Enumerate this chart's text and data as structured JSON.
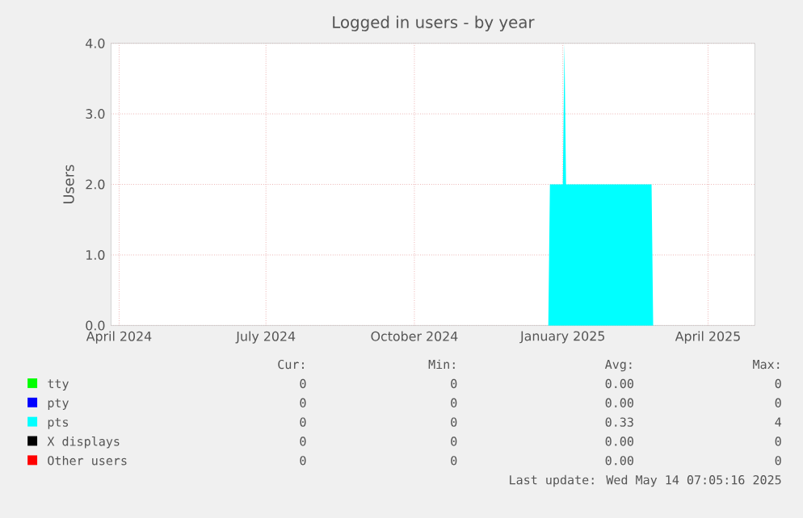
{
  "chart_data": {
    "type": "area",
    "title": "Logged in users - by year",
    "ylabel": "Users",
    "xlim": [
      "2024-04-10",
      "2025-05-14"
    ],
    "ylim": [
      0,
      4
    ],
    "xticks": [
      {
        "value": "2024-04-15",
        "label": "April 2024"
      },
      {
        "value": "2024-07-15",
        "label": "July 2024"
      },
      {
        "value": "2024-10-15",
        "label": "October 2024"
      },
      {
        "value": "2025-01-15",
        "label": "January 2025"
      },
      {
        "value": "2025-04-15",
        "label": "April 2025"
      }
    ],
    "yticks": [
      {
        "value": 0,
        "label": "0.0"
      },
      {
        "value": 1,
        "label": "1.0"
      },
      {
        "value": 2,
        "label": "2.0"
      },
      {
        "value": 3,
        "label": "3.0"
      },
      {
        "value": 4,
        "label": "4.0"
      }
    ],
    "grid": true,
    "legend": "bottom",
    "series": [
      {
        "name": "tty",
        "color": "#00ff00"
      },
      {
        "name": "pty",
        "color": "#0000ff"
      },
      {
        "name": "pts",
        "color": "#00ffff",
        "x": [
          "2024-04-10",
          "2025-01-06",
          "2025-01-07",
          "2025-01-15",
          "2025-01-16",
          "2025-01-17",
          "2025-03-11",
          "2025-03-12",
          "2025-05-14"
        ],
        "values": [
          0,
          0,
          2,
          2,
          4,
          2,
          2,
          0,
          0
        ]
      },
      {
        "name": "X displays",
        "color": "#000000"
      },
      {
        "name": "Other users",
        "color": "#ff0000"
      }
    ],
    "annotations": [
      "Cur:",
      "Min:",
      "Avg:",
      "Max:",
      "0",
      "0",
      "0.00",
      "0",
      "0",
      "0",
      "0.00",
      "0",
      "0",
      "0",
      "0.33",
      "4",
      "0",
      "0",
      "0.00",
      "0",
      "0",
      "0",
      "0.00",
      "0",
      "Last update: Wed May 14 07:05:16 2025"
    ]
  }
}
